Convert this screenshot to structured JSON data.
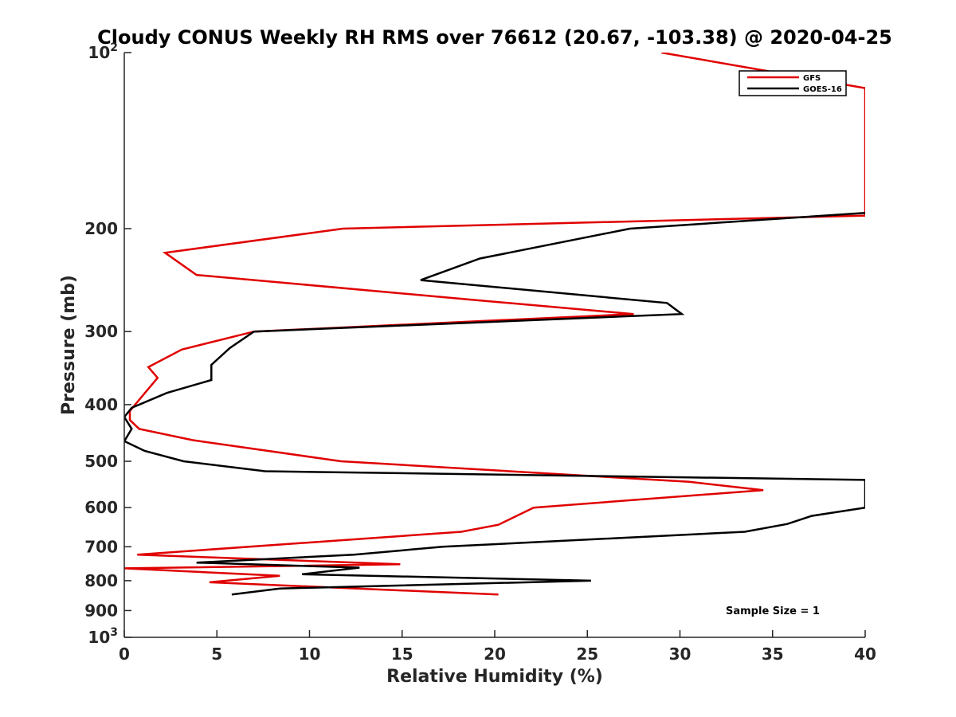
{
  "chart_data": {
    "type": "line",
    "title": "Cloudy CONUS Weekly RH RMS over 76612 (20.67, -103.38) @ 2020-04-25",
    "xlabel": "Relative Humidity (%)",
    "ylabel": "Pressure (mb)",
    "xlim": [
      0,
      40
    ],
    "ylim": [
      100,
      1000
    ],
    "y_scale": "log",
    "y_reversed": true,
    "x_ticks": [
      0,
      5,
      10,
      15,
      20,
      25,
      30,
      35,
      40
    ],
    "x_tick_labels": [
      "0",
      "5",
      "10",
      "15",
      "20",
      "25",
      "30",
      "35",
      "40"
    ],
    "y_ticks": [
      100,
      200,
      300,
      400,
      500,
      600,
      700,
      800,
      900,
      1000
    ],
    "y_tick_labels": [
      {
        "base": "10",
        "sup": "2"
      },
      {
        "base": "200",
        "sup": ""
      },
      {
        "base": "300",
        "sup": ""
      },
      {
        "base": "400",
        "sup": ""
      },
      {
        "base": "500",
        "sup": ""
      },
      {
        "base": "600",
        "sup": ""
      },
      {
        "base": "700",
        "sup": ""
      },
      {
        "base": "800",
        "sup": ""
      },
      {
        "base": "900",
        "sup": ""
      },
      {
        "base": "10",
        "sup": "3"
      }
    ],
    "grid": false,
    "legend_position": "top-right",
    "series": [
      {
        "name": "GFS",
        "color": "#e00000",
        "points": [
          [
            29,
            100
          ],
          [
            40,
            115
          ],
          [
            40,
            190
          ],
          [
            11.8,
            200
          ],
          [
            2.2,
            220
          ],
          [
            3.9,
            240
          ],
          [
            19,
            265
          ],
          [
            27.5,
            280
          ],
          [
            7,
            300
          ],
          [
            3.1,
            322
          ],
          [
            1.3,
            345
          ],
          [
            1.8,
            360
          ],
          [
            0.3,
            410
          ],
          [
            0.3,
            425
          ],
          [
            0.8,
            440
          ],
          [
            3.7,
            460
          ],
          [
            11.7,
            500
          ],
          [
            30.5,
            542
          ],
          [
            34.5,
            560
          ],
          [
            22.1,
            600
          ],
          [
            20.2,
            642
          ],
          [
            18.2,
            660
          ],
          [
            0.7,
            722
          ],
          [
            14.9,
            750
          ],
          [
            0,
            762
          ],
          [
            8.4,
            785
          ],
          [
            4.6,
            805
          ],
          [
            20.2,
            845
          ]
        ]
      },
      {
        "name": "GOES-16",
        "color": "#000000",
        "points": [
          [
            40,
            188
          ],
          [
            27.3,
            200
          ],
          [
            19.2,
            225
          ],
          [
            16,
            245
          ],
          [
            29.3,
            268
          ],
          [
            30.1,
            280
          ],
          [
            7,
            300
          ],
          [
            5.7,
            320
          ],
          [
            4.7,
            342
          ],
          [
            4.7,
            363
          ],
          [
            2.3,
            382
          ],
          [
            0.4,
            405
          ],
          [
            0,
            420
          ],
          [
            0.4,
            440
          ],
          [
            0,
            462
          ],
          [
            1.1,
            480
          ],
          [
            3.2,
            500
          ],
          [
            7.6,
            520
          ],
          [
            40,
            538
          ],
          [
            40,
            600
          ],
          [
            37.1,
            620
          ],
          [
            35.8,
            640
          ],
          [
            33.5,
            660
          ],
          [
            17.2,
            700
          ],
          [
            12.4,
            722
          ],
          [
            3.9,
            745
          ],
          [
            12.7,
            760
          ],
          [
            9.6,
            780
          ],
          [
            25.2,
            800
          ],
          [
            8.4,
            825
          ],
          [
            5.8,
            845
          ]
        ]
      }
    ],
    "annotations": [
      "Sample Size = 1"
    ]
  }
}
